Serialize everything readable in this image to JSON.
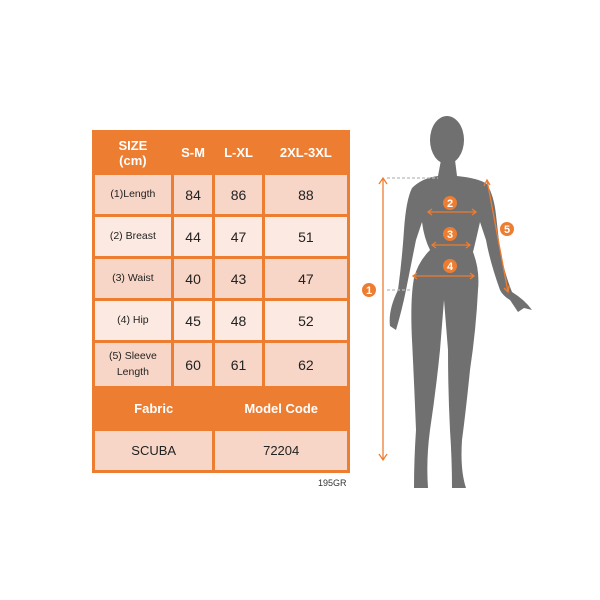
{
  "table": {
    "header": [
      "SIZE\n(cm)",
      "S-M",
      "L-XL",
      "2XL-3XL"
    ],
    "header_line1": "SIZE",
    "header_line2": "(cm)",
    "rows": [
      {
        "label": "(1)Length",
        "values": [
          "84",
          "86",
          "88"
        ]
      },
      {
        "label": "(2) Breast",
        "values": [
          "44",
          "47",
          "51"
        ]
      },
      {
        "label": "(3) Waist",
        "values": [
          "40",
          "43",
          "47"
        ]
      },
      {
        "label": "(4) Hip",
        "values": [
          "45",
          "48",
          "52"
        ]
      },
      {
        "label_line1": "(5) Sleeve",
        "label_line2": "Length",
        "values": [
          "60",
          "61",
          "62"
        ]
      }
    ],
    "footer_headers": [
      "Fabric",
      "Model Code"
    ],
    "footer_values": [
      "SCUBA",
      "72204"
    ]
  },
  "note": "195GR",
  "figure": {
    "markers": [
      "1",
      "2",
      "3",
      "4",
      "5"
    ]
  },
  "colors": {
    "accent": "#ed7d31",
    "cell_dark": "#f8d6c7",
    "cell_light": "#fce9e1",
    "silhouette": "#707070"
  }
}
